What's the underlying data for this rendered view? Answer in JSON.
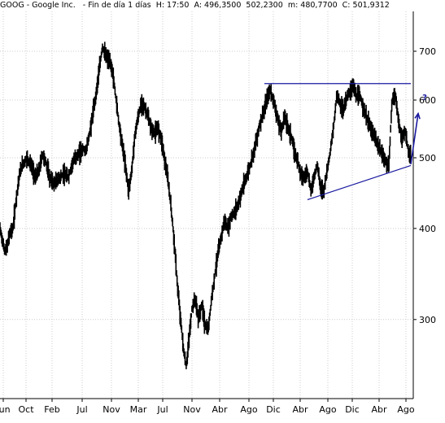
{
  "header": {
    "symbol": "GOOG",
    "name": "Google Inc.",
    "period": "Fin de día 1 días",
    "time_label": "H: 17:50",
    "open_label": "A: 496,3500",
    "high_label": "502,2300",
    "low_label": "m: 480,7700",
    "close_label": "C: 501,9312"
  },
  "chart_data": {
    "type": "bar",
    "subtype": "ohlc",
    "title": "GOOG - Google Inc. - Fin de día 1 días",
    "y_ticks": [
      300,
      400,
      500,
      600,
      700
    ],
    "y_tick_labels": [
      "300",
      "400",
      "500",
      "600",
      "700"
    ],
    "y_scale": "log",
    "ylim": [
      240,
      760
    ],
    "x_tick_labels": [
      "Jun",
      "Oct",
      "Feb",
      "Jul",
      "Nov",
      "Mar",
      "Jul",
      "Nov",
      "Abr",
      "Ago",
      "Dic",
      "Abr",
      "Ago",
      "Dic",
      "Abr",
      "Ago"
    ],
    "grid": true,
    "price_path": [
      {
        "t": 0,
        "p": 400
      },
      {
        "t": 3,
        "p": 385
      },
      {
        "t": 6,
        "p": 372
      },
      {
        "t": 9,
        "p": 378
      },
      {
        "t": 12,
        "p": 395
      },
      {
        "t": 16,
        "p": 400
      },
      {
        "t": 20,
        "p": 440
      },
      {
        "t": 24,
        "p": 475
      },
      {
        "t": 28,
        "p": 490
      },
      {
        "t": 33,
        "p": 500
      },
      {
        "t": 38,
        "p": 490
      },
      {
        "t": 43,
        "p": 470
      },
      {
        "t": 48,
        "p": 480
      },
      {
        "t": 52,
        "p": 505
      },
      {
        "t": 56,
        "p": 495
      },
      {
        "t": 61,
        "p": 470
      },
      {
        "t": 66,
        "p": 460
      },
      {
        "t": 72,
        "p": 468
      },
      {
        "t": 78,
        "p": 475
      },
      {
        "t": 84,
        "p": 470
      },
      {
        "t": 90,
        "p": 495
      },
      {
        "t": 96,
        "p": 505
      },
      {
        "t": 102,
        "p": 515
      },
      {
        "t": 106,
        "p": 510
      },
      {
        "t": 112,
        "p": 555
      },
      {
        "t": 118,
        "p": 610
      },
      {
        "t": 122,
        "p": 660
      },
      {
        "t": 126,
        "p": 710
      },
      {
        "t": 130,
        "p": 690
      },
      {
        "t": 134,
        "p": 680
      },
      {
        "t": 138,
        "p": 660
      },
      {
        "t": 142,
        "p": 610
      },
      {
        "t": 146,
        "p": 560
      },
      {
        "t": 150,
        "p": 525
      },
      {
        "t": 154,
        "p": 490
      },
      {
        "t": 158,
        "p": 450
      },
      {
        "t": 162,
        "p": 480
      },
      {
        "t": 166,
        "p": 540
      },
      {
        "t": 170,
        "p": 570
      },
      {
        "t": 174,
        "p": 595
      },
      {
        "t": 178,
        "p": 585
      },
      {
        "t": 182,
        "p": 570
      },
      {
        "t": 186,
        "p": 548
      },
      {
        "t": 190,
        "p": 540
      },
      {
        "t": 194,
        "p": 550
      },
      {
        "t": 198,
        "p": 535
      },
      {
        "t": 202,
        "p": 500
      },
      {
        "t": 206,
        "p": 470
      },
      {
        "t": 210,
        "p": 430
      },
      {
        "t": 214,
        "p": 385
      },
      {
        "t": 218,
        "p": 335
      },
      {
        "t": 222,
        "p": 300
      },
      {
        "t": 226,
        "p": 270
      },
      {
        "t": 229,
        "p": 258
      },
      {
        "t": 232,
        "p": 280
      },
      {
        "t": 236,
        "p": 310
      },
      {
        "t": 240,
        "p": 320
      },
      {
        "t": 244,
        "p": 300
      },
      {
        "t": 248,
        "p": 315
      },
      {
        "t": 252,
        "p": 295
      },
      {
        "t": 256,
        "p": 290
      },
      {
        "t": 260,
        "p": 320
      },
      {
        "t": 264,
        "p": 345
      },
      {
        "t": 268,
        "p": 370
      },
      {
        "t": 272,
        "p": 390
      },
      {
        "t": 276,
        "p": 410
      },
      {
        "t": 280,
        "p": 400
      },
      {
        "t": 284,
        "p": 415
      },
      {
        "t": 288,
        "p": 420
      },
      {
        "t": 292,
        "p": 430
      },
      {
        "t": 296,
        "p": 445
      },
      {
        "t": 300,
        "p": 460
      },
      {
        "t": 304,
        "p": 475
      },
      {
        "t": 308,
        "p": 490
      },
      {
        "t": 312,
        "p": 510
      },
      {
        "t": 316,
        "p": 535
      },
      {
        "t": 320,
        "p": 560
      },
      {
        "t": 324,
        "p": 575
      },
      {
        "t": 328,
        "p": 600
      },
      {
        "t": 332,
        "p": 620
      },
      {
        "t": 335,
        "p": 605
      },
      {
        "t": 338,
        "p": 590
      },
      {
        "t": 342,
        "p": 560
      },
      {
        "t": 346,
        "p": 545
      },
      {
        "t": 350,
        "p": 570
      },
      {
        "t": 354,
        "p": 550
      },
      {
        "t": 358,
        "p": 535
      },
      {
        "t": 362,
        "p": 510
      },
      {
        "t": 366,
        "p": 495
      },
      {
        "t": 370,
        "p": 475
      },
      {
        "t": 374,
        "p": 470
      },
      {
        "t": 378,
        "p": 480
      },
      {
        "t": 382,
        "p": 450
      },
      {
        "t": 386,
        "p": 470
      },
      {
        "t": 390,
        "p": 490
      },
      {
        "t": 394,
        "p": 455
      },
      {
        "t": 398,
        "p": 450
      },
      {
        "t": 402,
        "p": 480
      },
      {
        "t": 406,
        "p": 510
      },
      {
        "t": 410,
        "p": 550
      },
      {
        "t": 414,
        "p": 610
      },
      {
        "t": 418,
        "p": 595
      },
      {
        "t": 422,
        "p": 580
      },
      {
        "t": 426,
        "p": 605
      },
      {
        "t": 430,
        "p": 615
      },
      {
        "t": 434,
        "p": 630
      },
      {
        "t": 438,
        "p": 605
      },
      {
        "t": 442,
        "p": 610
      },
      {
        "t": 446,
        "p": 590
      },
      {
        "t": 450,
        "p": 570
      },
      {
        "t": 454,
        "p": 555
      },
      {
        "t": 458,
        "p": 540
      },
      {
        "t": 462,
        "p": 530
      },
      {
        "t": 466,
        "p": 515
      },
      {
        "t": 470,
        "p": 505
      },
      {
        "t": 474,
        "p": 495
      },
      {
        "t": 478,
        "p": 485
      },
      {
        "t": 482,
        "p": 600
      },
      {
        "t": 486,
        "p": 612
      },
      {
        "t": 490,
        "p": 560
      },
      {
        "t": 494,
        "p": 530
      },
      {
        "t": 498,
        "p": 545
      },
      {
        "t": 502,
        "p": 510
      },
      {
        "t": 505,
        "p": 500
      }
    ],
    "annotations": [
      {
        "type": "horizontal_line",
        "from_t": 325,
        "to_t": 505,
        "value": 632,
        "color": "#1a1aa0"
      },
      {
        "type": "trend_line",
        "from_t": 378,
        "to_t": 505,
        "from_value": 438,
        "to_value": 488,
        "color": "#1a1aa0"
      },
      {
        "type": "arrow",
        "from_t": 505,
        "to_t": 514,
        "from_value": 490,
        "to_value": 575,
        "color": "#1a1aa0"
      },
      {
        "type": "text",
        "t": 522,
        "value": 600,
        "text": "?",
        "color": "#1a1aa0"
      }
    ]
  },
  "colors": {
    "background": "#ffffff",
    "price": "#000000",
    "grid": "#cccccc",
    "annotation": "#1a1aa0"
  }
}
